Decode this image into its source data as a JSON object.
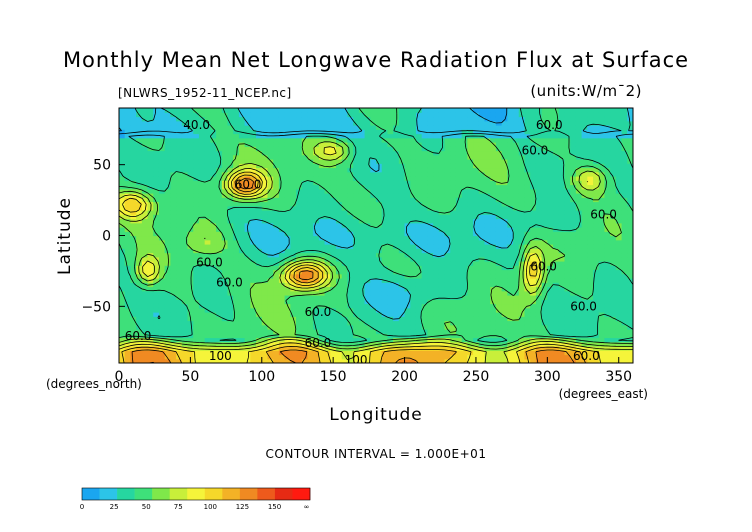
{
  "chart_data": {
    "type": "heatmap",
    "title": "Monthly Mean Net Longwave Radiation Flux at Surface",
    "subtitle_left": "[NLWRS_1952-11_NCEP.nc]",
    "subtitle_right": "(units:W/m^2)",
    "xlabel": "Longitude",
    "ylabel": "Latitude",
    "x_unit_label": "(degrees_east)",
    "y_unit_label": "(degrees_north)",
    "xlim": [
      0,
      360
    ],
    "ylim": [
      -90,
      90
    ],
    "x_ticks": [
      0,
      50,
      100,
      150,
      200,
      250,
      300,
      350
    ],
    "y_ticks": [
      -50,
      0,
      50
    ],
    "contour_interval_text": "CONTOUR INTERVAL = 1.000E+01",
    "contour_labels": [
      {
        "text": "40.0",
        "lon": 45,
        "lat": 78
      },
      {
        "text": "60.0",
        "lon": 292,
        "lat": 78
      },
      {
        "text": "60.0",
        "lon": 282,
        "lat": 60
      },
      {
        "text": "60.0",
        "lon": 81,
        "lat": 36
      },
      {
        "text": "60.0",
        "lon": 330,
        "lat": 15
      },
      {
        "text": "60.0",
        "lon": 54,
        "lat": -19
      },
      {
        "text": "60.0",
        "lon": 68,
        "lat": -33
      },
      {
        "text": "60.0",
        "lon": 288,
        "lat": -22
      },
      {
        "text": "60.0",
        "lon": 316,
        "lat": -50
      },
      {
        "text": "60.0",
        "lon": 130,
        "lat": -54
      },
      {
        "text": "60.0",
        "lon": 4,
        "lat": -71
      },
      {
        "text": "60.0",
        "lon": 130,
        "lat": -76
      },
      {
        "text": "60.0",
        "lon": 318,
        "lat": -85
      },
      {
        "text": "100",
        "lon": 63,
        "lat": -85
      },
      {
        "text": "100",
        "lon": 158,
        "lat": -88
      }
    ],
    "colorbar": {
      "levels": [
        "0",
        "25",
        "50",
        "75",
        "100",
        "125",
        "150",
        "∞"
      ],
      "colors": [
        "#1aa6f0",
        "#2cc4e8",
        "#26d6a0",
        "#3ee07a",
        "#7fe84a",
        "#c8ef3a",
        "#f5f43a",
        "#f5d82a",
        "#f3b226",
        "#f08a22",
        "#ee5a1c",
        "#e62a14",
        "#ff1a10"
      ]
    },
    "field_description_regions": [
      {
        "lon": [
          0,
          360
        ],
        "lat": [
          -90,
          90
        ],
        "level": 3
      },
      {
        "lon": [
          100,
          260
        ],
        "lat": [
          -20,
          20
        ],
        "level": 2
      },
      {
        "lon": [
          170,
          240
        ],
        "lat": [
          -55,
          -20
        ],
        "level": 2
      },
      {
        "lon": [
          0,
          30
        ],
        "lat": [
          10,
          35
        ],
        "level": 7
      },
      {
        "lon": [
          70,
          110
        ],
        "lat": [
          25,
          50
        ],
        "level": 9
      },
      {
        "lon": [
          110,
          160
        ],
        "lat": [
          -45,
          -15
        ],
        "level": 9
      },
      {
        "lon": [
          280,
          300
        ],
        "lat": [
          -45,
          -5
        ],
        "level": 7
      },
      {
        "lon": [
          0,
          360
        ],
        "lat": [
          -90,
          -70
        ],
        "level": 8
      }
    ]
  }
}
